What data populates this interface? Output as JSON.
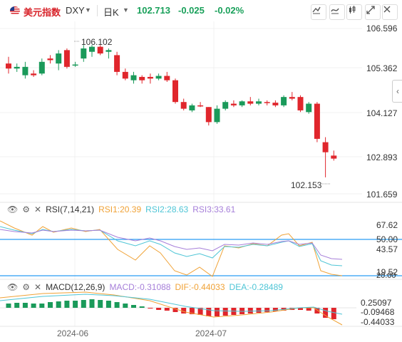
{
  "header": {
    "symbol_cn": "美元指数",
    "symbol_code": "DXY",
    "period": "日K",
    "price": "102.713",
    "change": "-0.025",
    "change_pct": "-0.02%"
  },
  "colors": {
    "up": "#e0262c",
    "down": "#1a9a5a",
    "line": "#2a9df4",
    "rsi1": "#f0a236",
    "rsi2": "#4ec5d6",
    "rsi3": "#a67fd9"
  },
  "price_axis": [
    "106.596",
    "105.362",
    "104.127",
    "102.893",
    "101.659"
  ],
  "annotations": {
    "high": "106.102",
    "low": "102.153"
  },
  "rsi": {
    "title": "RSI(7,14,21)",
    "rsi1": "RSI1:20.39",
    "rsi2": "RSI2:28.63",
    "rsi3": "RSI3:33.61",
    "axis": [
      "67.62",
      "50.00",
      "43.57",
      "19.52",
      "20.00"
    ]
  },
  "macd": {
    "title": "MACD(12,26,9)",
    "macd": "MACD:-0.31088",
    "dif": "DIF:-0.44033",
    "dea": "DEA:-0.28489",
    "axis": [
      "0.25097",
      "-0.09468",
      "-0.44033"
    ]
  },
  "dates": [
    "2024-06",
    "2024-07"
  ],
  "chart_data": {
    "type": "candlestick",
    "candles": [
      {
        "o": 105.55,
        "h": 105.75,
        "l": 105.25,
        "c": 105.4
      },
      {
        "o": 105.4,
        "h": 105.55,
        "l": 105.3,
        "c": 105.45
      },
      {
        "o": 105.2,
        "h": 105.6,
        "l": 105.1,
        "c": 105.45
      },
      {
        "o": 105.25,
        "h": 105.35,
        "l": 105.15,
        "c": 105.2
      },
      {
        "o": 105.25,
        "h": 105.7,
        "l": 105.2,
        "c": 105.6
      },
      {
        "o": 105.7,
        "h": 105.8,
        "l": 105.55,
        "c": 105.65
      },
      {
        "o": 105.55,
        "h": 105.95,
        "l": 105.35,
        "c": 105.85
      },
      {
        "o": 105.95,
        "h": 106.0,
        "l": 105.4,
        "c": 105.45
      },
      {
        "o": 105.5,
        "h": 105.6,
        "l": 105.45,
        "c": 105.52
      },
      {
        "o": 105.7,
        "h": 106.1,
        "l": 105.6,
        "c": 106.0
      },
      {
        "o": 105.9,
        "h": 106.1,
        "l": 105.75,
        "c": 106.05
      },
      {
        "o": 106.05,
        "h": 106.1,
        "l": 105.8,
        "c": 105.85
      },
      {
        "o": 105.9,
        "h": 106.0,
        "l": 105.7,
        "c": 105.95
      },
      {
        "o": 105.8,
        "h": 105.9,
        "l": 105.2,
        "c": 105.3
      },
      {
        "o": 105.3,
        "h": 105.4,
        "l": 105.05,
        "c": 105.1
      },
      {
        "o": 105.05,
        "h": 105.3,
        "l": 104.95,
        "c": 105.2
      },
      {
        "o": 105.15,
        "h": 105.2,
        "l": 104.95,
        "c": 105.05
      },
      {
        "o": 105.15,
        "h": 105.25,
        "l": 104.95,
        "c": 105.1
      },
      {
        "o": 105.1,
        "h": 105.25,
        "l": 105.05,
        "c": 105.18
      },
      {
        "o": 105.18,
        "h": 105.3,
        "l": 105.0,
        "c": 105.05
      },
      {
        "o": 105.05,
        "h": 105.1,
        "l": 104.35,
        "c": 104.4
      },
      {
        "o": 104.4,
        "h": 104.5,
        "l": 104.15,
        "c": 104.2
      },
      {
        "o": 104.15,
        "h": 104.35,
        "l": 104.1,
        "c": 104.3
      },
      {
        "o": 104.3,
        "h": 104.4,
        "l": 104.25,
        "c": 104.28
      },
      {
        "o": 104.25,
        "h": 104.25,
        "l": 103.7,
        "c": 103.8
      },
      {
        "o": 103.8,
        "h": 104.3,
        "l": 103.75,
        "c": 104.2
      },
      {
        "o": 104.2,
        "h": 104.45,
        "l": 104.15,
        "c": 104.4
      },
      {
        "o": 104.35,
        "h": 104.45,
        "l": 104.25,
        "c": 104.3
      },
      {
        "o": 104.3,
        "h": 104.45,
        "l": 104.25,
        "c": 104.42
      },
      {
        "o": 104.42,
        "h": 104.55,
        "l": 104.3,
        "c": 104.35
      },
      {
        "o": 104.35,
        "h": 104.5,
        "l": 104.3,
        "c": 104.42
      },
      {
        "o": 104.4,
        "h": 104.45,
        "l": 104.3,
        "c": 104.38
      },
      {
        "o": 104.38,
        "h": 104.45,
        "l": 104.25,
        "c": 104.3
      },
      {
        "o": 104.3,
        "h": 104.6,
        "l": 104.25,
        "c": 104.55
      },
      {
        "o": 104.55,
        "h": 104.7,
        "l": 104.45,
        "c": 104.5
      },
      {
        "o": 104.55,
        "h": 104.6,
        "l": 104.1,
        "c": 104.15
      },
      {
        "o": 104.1,
        "h": 104.4,
        "l": 104.05,
        "c": 104.35
      },
      {
        "o": 104.35,
        "h": 104.4,
        "l": 103.2,
        "c": 103.3
      },
      {
        "o": 103.2,
        "h": 103.35,
        "l": 102.15,
        "c": 102.9
      },
      {
        "o": 102.8,
        "h": 102.95,
        "l": 102.65,
        "c": 102.71
      }
    ]
  }
}
